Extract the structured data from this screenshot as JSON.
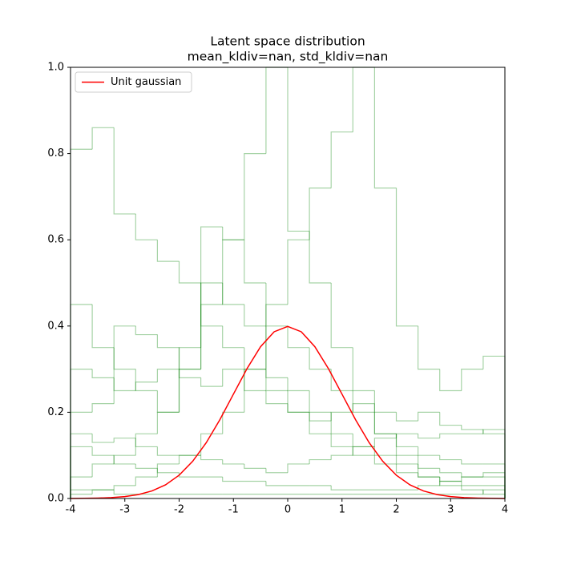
{
  "chart_data": {
    "type": "histogram",
    "title": "Latent space distribution",
    "subtitle": "mean_kldiv=nan, std_kldiv=nan",
    "xlim": [
      -4,
      4
    ],
    "ylim": [
      0,
      1
    ],
    "xticks": [
      -4,
      -3,
      -2,
      -1,
      0,
      1,
      2,
      3,
      4
    ],
    "yticks": [
      {
        "value": 0,
        "label": "0.0"
      },
      0.2,
      0.4,
      0.6,
      0.8,
      {
        "value": 1,
        "label": "1.0"
      }
    ],
    "legend": "upper left",
    "bins": [
      -4,
      -3.6,
      -3.2,
      -2.8,
      -2.4,
      -2,
      -1.6,
      -1.2,
      -0.8,
      -0.4,
      0,
      0.4,
      0.8,
      1.2,
      1.6,
      2,
      2.4,
      2.8,
      3.2,
      3.6,
      4
    ],
    "alpha": 0.35,
    "series": [
      {
        "color": "#008000",
        "values": [
          0.81,
          0.86,
          0.66,
          0.6,
          0.55,
          0.5,
          0.4,
          0.35,
          0.3,
          0.25,
          0.2,
          0.15,
          0.12,
          0.1,
          0.08,
          0.06,
          0.05,
          0.04,
          0.03,
          0.03
        ]
      },
      {
        "color": "#008000",
        "values": [
          0.05,
          0.08,
          0.1,
          0.15,
          0.2,
          0.3,
          0.45,
          0.6,
          0.8,
          1.0,
          0.62,
          0.5,
          0.35,
          0.25,
          0.15,
          0.1,
          0.05,
          0.03,
          0.02,
          0.01
        ]
      },
      {
        "color": "#008000",
        "values": [
          0.01,
          0.02,
          0.03,
          0.05,
          0.08,
          0.1,
          0.15,
          0.2,
          0.3,
          0.45,
          0.6,
          0.72,
          0.85,
          1.0,
          0.72,
          0.4,
          0.3,
          0.25,
          0.3,
          0.33
        ]
      },
      {
        "color": "#008000",
        "values": [
          0.3,
          0.28,
          0.25,
          0.27,
          0.3,
          0.28,
          0.26,
          0.3,
          0.25,
          0.22,
          0.2,
          0.18,
          0.2,
          0.22,
          0.2,
          0.18,
          0.2,
          0.17,
          0.16,
          0.15
        ]
      },
      {
        "color": "#008000",
        "values": [
          0.2,
          0.22,
          0.4,
          0.38,
          0.35,
          0.3,
          0.63,
          0.6,
          0.5,
          0.4,
          0.35,
          0.3,
          0.25,
          0.2,
          0.15,
          0.12,
          0.1,
          0.09,
          0.08,
          0.08
        ]
      },
      {
        "color": "#008000",
        "values": [
          0.12,
          0.1,
          0.08,
          0.07,
          0.06,
          0.05,
          0.05,
          0.04,
          0.04,
          0.03,
          0.03,
          0.03,
          0.02,
          0.02,
          0.02,
          0.02,
          0.03,
          0.04,
          0.05,
          0.06
        ]
      },
      {
        "color": "#008000",
        "values": [
          0.15,
          0.13,
          0.14,
          0.12,
          0.1,
          0.1,
          0.09,
          0.08,
          0.07,
          0.06,
          0.08,
          0.09,
          0.1,
          0.12,
          0.14,
          0.15,
          0.14,
          0.15,
          0.15,
          0.16
        ]
      },
      {
        "color": "#008000",
        "values": [
          0.02,
          0.02,
          0.01,
          0.01,
          0.01,
          0.01,
          0.01,
          0.01,
          0.01,
          0.01,
          0.01,
          0.01,
          0.01,
          0.01,
          0.01,
          0.01,
          0.01,
          0.01,
          0.01,
          0.02
        ]
      },
      {
        "color": "#008000",
        "values": [
          0.45,
          0.35,
          0.3,
          0.25,
          0.2,
          0.35,
          0.5,
          0.45,
          0.4,
          0.28,
          0.25,
          0.2,
          0.15,
          0.12,
          0.1,
          0.08,
          0.07,
          0.06,
          0.05,
          0.05
        ]
      }
    ],
    "line": {
      "name": "Unit gaussian",
      "color": "#ff0000",
      "x": [
        -4,
        -3.75,
        -3.5,
        -3.25,
        -3,
        -2.75,
        -2.5,
        -2.25,
        -2,
        -1.75,
        -1.5,
        -1.25,
        -1,
        -0.75,
        -0.5,
        -0.25,
        0,
        0.25,
        0.5,
        0.75,
        1,
        1.25,
        1.5,
        1.75,
        2,
        2.25,
        2.5,
        2.75,
        3,
        3.25,
        3.5,
        3.75,
        4
      ],
      "values": [
        0.0001,
        0.0004,
        0.0009,
        0.002,
        0.0044,
        0.0091,
        0.0175,
        0.0317,
        0.054,
        0.0863,
        0.1295,
        0.1826,
        0.242,
        0.3011,
        0.3521,
        0.3867,
        0.399,
        0.3867,
        0.3521,
        0.3011,
        0.242,
        0.1826,
        0.1295,
        0.0863,
        0.054,
        0.0317,
        0.0175,
        0.0091,
        0.0044,
        0.002,
        0.0009,
        0.0004,
        0.0001
      ]
    }
  }
}
